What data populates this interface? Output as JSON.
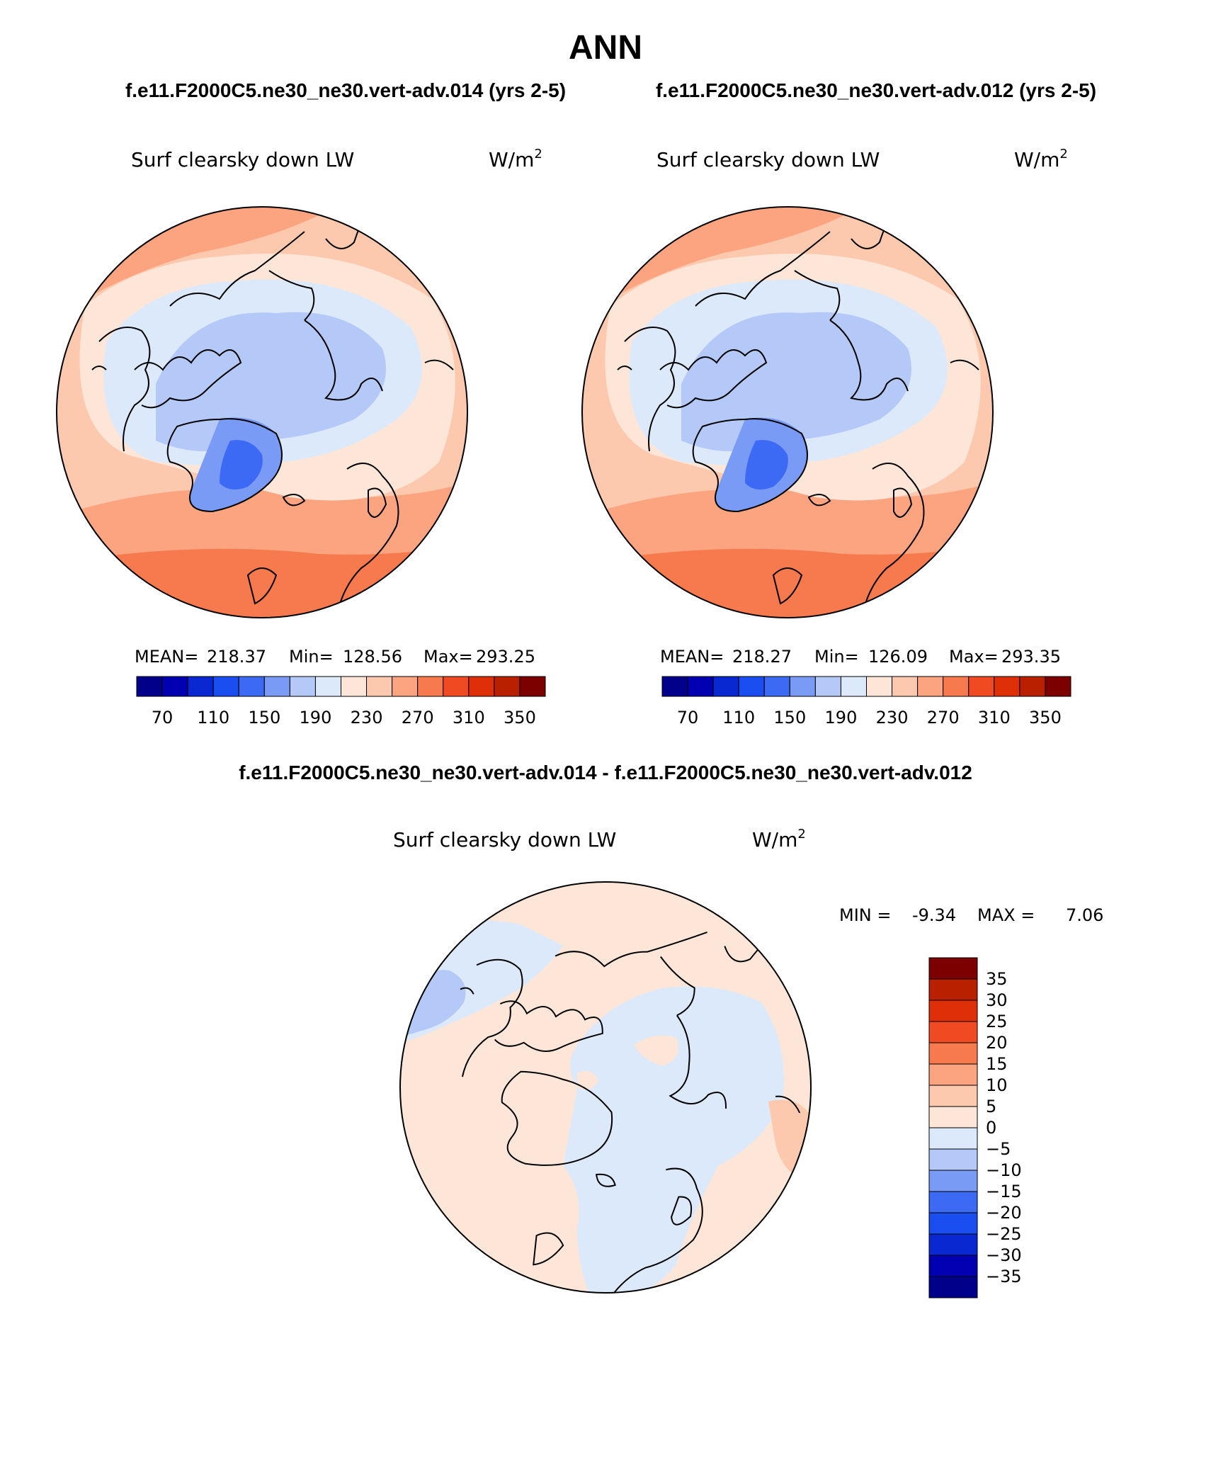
{
  "title": "ANN",
  "panel_titles": {
    "left": "f.e11.F2000C5.ne30_ne30.vert-adv.014 (yrs 2-5)",
    "right": "f.e11.F2000C5.ne30_ne30.vert-adv.012 (yrs 2-5)",
    "diff": "f.e11.F2000C5.ne30_ne30.vert-adv.014 - f.e11.F2000C5.ne30_ne30.vert-adv.012"
  },
  "variable": "Surf clearsky down LW",
  "units": {
    "base": "W/m",
    "sup": "2"
  },
  "maps": [
    {
      "id": "left",
      "stats": {
        "mean_label": "MEAN=",
        "mean": "218.37",
        "min_label": "Min=",
        "min": "128.56",
        "max_label": "Max=",
        "max": "293.25"
      }
    },
    {
      "id": "right",
      "stats": {
        "mean_label": "MEAN=",
        "mean": "218.27",
        "min_label": "Min=",
        "min": "126.09",
        "max_label": "Max=",
        "max": "293.35"
      }
    }
  ],
  "diff_stats": {
    "min_label": "MIN =",
    "min": "-9.34",
    "max_label": "MAX =",
    "max": "7.06"
  },
  "colorbar_main": {
    "colors": [
      "#00008b",
      "#0000b2",
      "#0a28d2",
      "#1a4ef0",
      "#3d6af5",
      "#7a9bf5",
      "#b4c9f7",
      "#dbe9fb",
      "#fde6d7",
      "#fcc9ae",
      "#fba47f",
      "#f77a4f",
      "#f04a22",
      "#de2f08",
      "#b82000",
      "#7d0000"
    ],
    "tick_labels": [
      "70",
      "110",
      "150",
      "190",
      "230",
      "270",
      "310",
      "350"
    ]
  },
  "colorbar_diff": {
    "colors_top_to_bottom": [
      "#7d0000",
      "#b82000",
      "#de2f08",
      "#f04a22",
      "#f77a4f",
      "#fba47f",
      "#fcc9ae",
      "#fde6d7",
      "#dbe9fb",
      "#b4c9f7",
      "#7a9bf5",
      "#3d6af5",
      "#1a4ef0",
      "#0a28d2",
      "#0000b2",
      "#00008b"
    ],
    "tick_labels": [
      "35",
      "30",
      "25",
      "20",
      "15",
      "10",
      "5",
      "0",
      "−5",
      "−10",
      "−15",
      "−20",
      "−25",
      "−30",
      "−35"
    ]
  }
}
